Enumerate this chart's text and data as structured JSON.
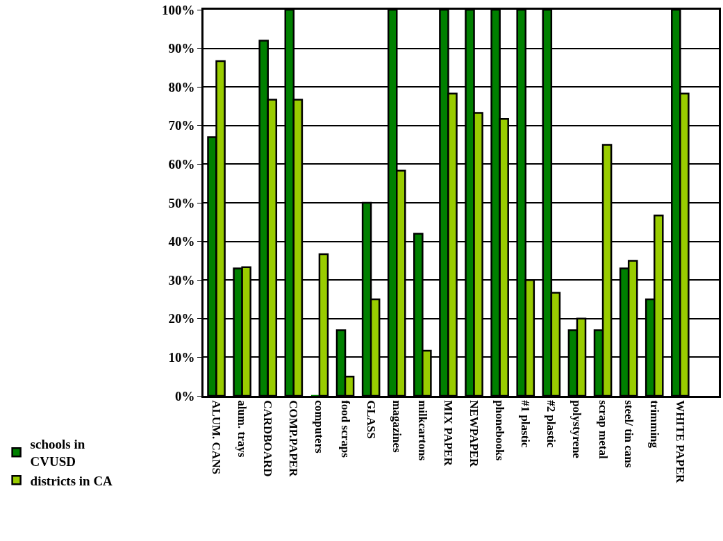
{
  "chart_data": {
    "type": "bar",
    "categories": [
      "ALUM. CANS",
      "alum. trays",
      "CARDBOARD",
      "COMP.PAPER",
      "computers",
      "food scraps",
      "GLASS",
      "magazines",
      "milkcartons",
      "MIX PAPER",
      "NEWPAPER",
      "phonebooks",
      "#1 plastic",
      "#2 plastic",
      "polystyrene",
      "scrap metal",
      "steel/ tin cans",
      "trimming",
      "WHITE PAPER",
      null
    ],
    "series": [
      {
        "name": "schools in CVUSD",
        "color": "#008000",
        "values": [
          67,
          33,
          92,
          100,
          0,
          17,
          50,
          100,
          42,
          100,
          100,
          100,
          100,
          100,
          17,
          17,
          33,
          25,
          100,
          null
        ]
      },
      {
        "name": "districts in CA",
        "color": "#99cc00",
        "values": [
          86.7,
          33.3,
          76.7,
          76.7,
          36.7,
          5,
          25,
          58.3,
          11.7,
          78.3,
          73.3,
          71.7,
          30,
          26.7,
          20,
          65,
          35,
          46.7,
          78.3,
          null
        ]
      }
    ],
    "ylim": [
      0,
      100
    ],
    "yticks": [
      {
        "value": 0,
        "label": "0%"
      },
      {
        "value": 10,
        "label": "10%"
      },
      {
        "value": 20,
        "label": "20%"
      },
      {
        "value": 30,
        "label": "30%"
      },
      {
        "value": 40,
        "label": "40%"
      },
      {
        "value": 50,
        "label": "50%"
      },
      {
        "value": 60,
        "label": "60%"
      },
      {
        "value": 70,
        "label": "70%"
      },
      {
        "value": 80,
        "label": "80%"
      },
      {
        "value": 90,
        "label": "90%"
      },
      {
        "value": 100,
        "label": "100%"
      }
    ],
    "grid": "y",
    "legend": "bottom left"
  }
}
